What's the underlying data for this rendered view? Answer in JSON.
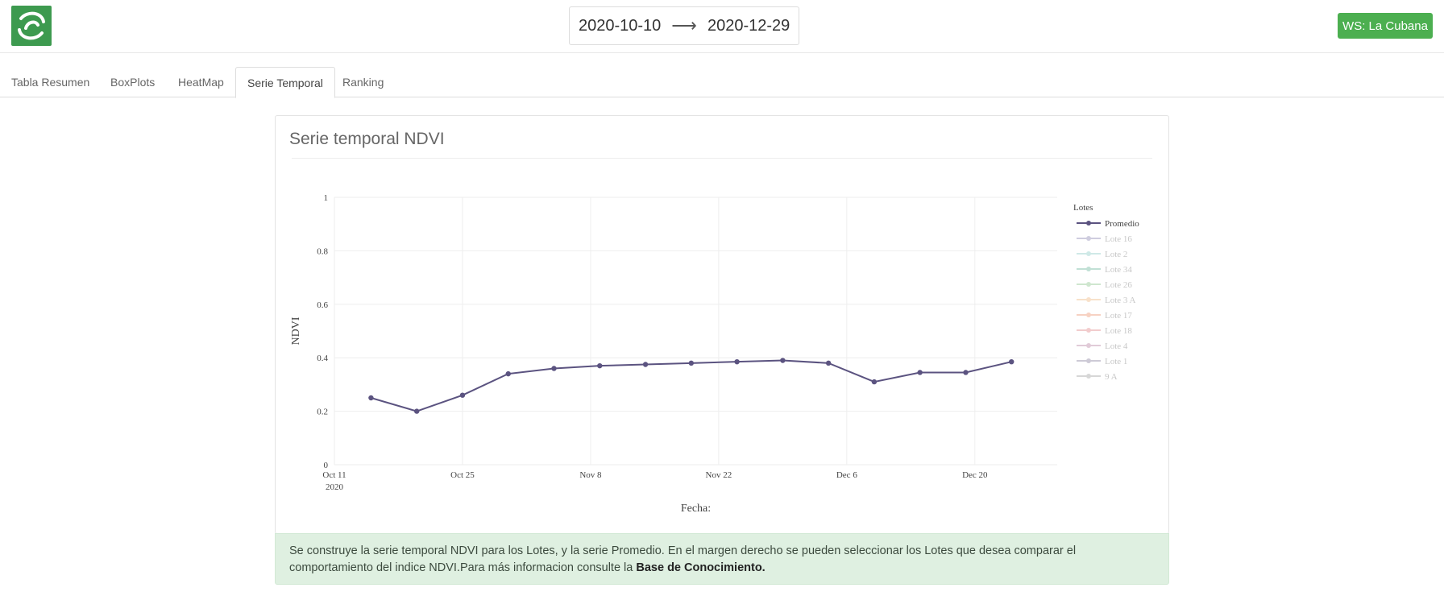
{
  "header": {
    "logo_icon": "swirl-logo-icon",
    "date_from": "2020-10-10",
    "date_arrow": "⟶",
    "date_to": "2020-12-29",
    "ws_button_label": "WS: La Cubana",
    "accent_color": "#4caf50"
  },
  "tabs": [
    {
      "label": "Tabla Resumen",
      "active": false
    },
    {
      "label": "BoxPlots",
      "active": false
    },
    {
      "label": "HeatMap",
      "active": false
    },
    {
      "label": "Serie Temporal",
      "active": true
    },
    {
      "label": "Ranking",
      "active": false
    }
  ],
  "panel": {
    "title": "Serie temporal NDVI"
  },
  "info": {
    "text": "Se construye la serie temporal NDVI para los Lotes, y la serie Promedio. En el margen derecho se pueden seleccionar los Lotes que desea comparar el comportamiento del indice NDVI.Para más informacion consulte la ",
    "link": "Base de Conocimiento."
  },
  "chart_data": {
    "type": "line",
    "xlabel": "Fecha:",
    "ylabel": "NDVI",
    "ylim": [
      0,
      1
    ],
    "y_ticks": [
      "0",
      "0.2",
      "0.4",
      "0.6",
      "0.8",
      "1"
    ],
    "x_ticks": [
      {
        "date": "2020-10-11",
        "label": "Oct 11",
        "sublabel": "2020"
      },
      {
        "date": "2020-10-25",
        "label": "Oct 25",
        "sublabel": ""
      },
      {
        "date": "2020-11-08",
        "label": "Nov 8",
        "sublabel": ""
      },
      {
        "date": "2020-11-22",
        "label": "Nov 22",
        "sublabel": ""
      },
      {
        "date": "2020-12-06",
        "label": "Dec 6",
        "sublabel": ""
      },
      {
        "date": "2020-12-20",
        "label": "Dec 20",
        "sublabel": ""
      }
    ],
    "x": [
      "2020-10-15",
      "2020-10-20",
      "2020-10-25",
      "2020-10-30",
      "2020-11-04",
      "2020-11-09",
      "2020-11-14",
      "2020-11-19",
      "2020-11-24",
      "2020-11-29",
      "2020-12-04",
      "2020-12-09",
      "2020-12-14",
      "2020-12-19",
      "2020-12-24"
    ],
    "grid": true,
    "legend_title": "Lotes",
    "legend_placement": "right",
    "series": [
      {
        "name": "Promedio",
        "color": "#5b5380",
        "visible": true,
        "values": [
          0.25,
          0.2,
          0.26,
          0.34,
          0.36,
          0.37,
          0.375,
          0.38,
          0.385,
          0.39,
          0.38,
          0.31,
          0.345,
          0.345,
          0.385
        ]
      },
      {
        "name": "Lote 16",
        "color": "#a9a6c6",
        "visible": false
      },
      {
        "name": "Lote 2",
        "color": "#a8d8d4",
        "visible": false
      },
      {
        "name": "Lote 34",
        "color": "#8fc7b4",
        "visible": false
      },
      {
        "name": "Lote 26",
        "color": "#a9d3a8",
        "visible": false
      },
      {
        "name": "Lote 3 A",
        "color": "#f4c9a0",
        "visible": false
      },
      {
        "name": "Lote 17",
        "color": "#f1ae93",
        "visible": false
      },
      {
        "name": "Lote 18",
        "color": "#e8a4a6",
        "visible": false
      },
      {
        "name": "Lote 4",
        "color": "#c9a2b9",
        "visible": false
      },
      {
        "name": "Lote 1",
        "color": "#a6a0b5",
        "visible": false
      },
      {
        "name": "9 A",
        "color": "#b7b7b7",
        "visible": false
      }
    ]
  }
}
